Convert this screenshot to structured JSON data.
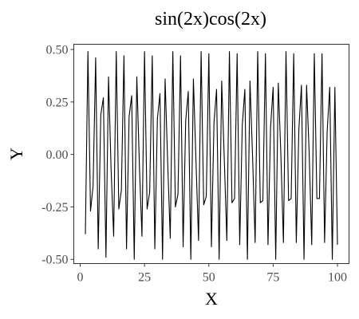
{
  "chart_data": {
    "type": "line",
    "title": "sin(2x)cos(2x)",
    "xlabel": "X",
    "ylabel": "Y",
    "xlim": [
      -2.5,
      104.5
    ],
    "ylim": [
      -0.52,
      0.525
    ],
    "x_ticks": [
      0,
      25,
      50,
      75,
      100
    ],
    "y_ticks": [
      0.5,
      0.25,
      0,
      -0.25,
      -0.5
    ],
    "x_tick_labels": [
      "0",
      "25",
      "50",
      "75",
      "100"
    ],
    "y_tick_labels": [
      "0.50",
      "0.25",
      "0.00",
      "-0.25",
      "-0.50"
    ],
    "grid": false,
    "series": [
      {
        "color": "#000000",
        "x": [
          2,
          3,
          4,
          5,
          6,
          7,
          8,
          9,
          10,
          11,
          12,
          13,
          14,
          15,
          16,
          17,
          18,
          19,
          20,
          21,
          22,
          23,
          24,
          25,
          26,
          27,
          28,
          29,
          30,
          31,
          32,
          33,
          34,
          35,
          36,
          37,
          38,
          39,
          40,
          41,
          42,
          43,
          44,
          45,
          46,
          47,
          48,
          49,
          50,
          51,
          52,
          53,
          54,
          55,
          56,
          57,
          58,
          59,
          60,
          61,
          62,
          63,
          64,
          65,
          66,
          67,
          68,
          69,
          70,
          71,
          72,
          73,
          74,
          75,
          76,
          77,
          78,
          79,
          80,
          81,
          82,
          83,
          84,
          85,
          86,
          87,
          88,
          89,
          90,
          91,
          92,
          93,
          94,
          95,
          96,
          97,
          98,
          99,
          100
        ],
        "values": [
          -0.38,
          0.49,
          -0.27,
          -0.15,
          0.46,
          -0.45,
          0.19,
          0.27,
          -0.49,
          0.37,
          -0.07,
          -0.39,
          0.49,
          -0.26,
          -0.17,
          0.47,
          -0.45,
          0.18,
          0.28,
          -0.5,
          0.37,
          -0.05,
          -0.39,
          0.49,
          -0.26,
          -0.18,
          0.47,
          -0.45,
          0.17,
          0.29,
          -0.5,
          0.36,
          -0.04,
          -0.4,
          0.49,
          -0.25,
          -0.19,
          0.47,
          -0.44,
          0.16,
          0.3,
          -0.5,
          0.36,
          -0.03,
          -0.41,
          0.49,
          -0.24,
          -0.2,
          0.48,
          -0.44,
          0.15,
          0.31,
          -0.5,
          0.35,
          -0.02,
          -0.41,
          0.49,
          -0.23,
          -0.21,
          0.48,
          -0.43,
          0.14,
          0.31,
          -0.5,
          0.35,
          -0.01,
          -0.42,
          0.49,
          -0.23,
          -0.22,
          0.48,
          -0.43,
          0.13,
          0.32,
          -0.5,
          0.34,
          0.0,
          -0.42,
          0.49,
          -0.22,
          -0.21,
          0.48,
          -0.42,
          0.12,
          0.33,
          -0.5,
          0.33,
          0.01,
          -0.43,
          0.48,
          -0.21,
          -0.21,
          0.48,
          -0.42,
          0.11,
          0.32,
          -0.5,
          0.32,
          -0.43
        ]
      }
    ]
  }
}
